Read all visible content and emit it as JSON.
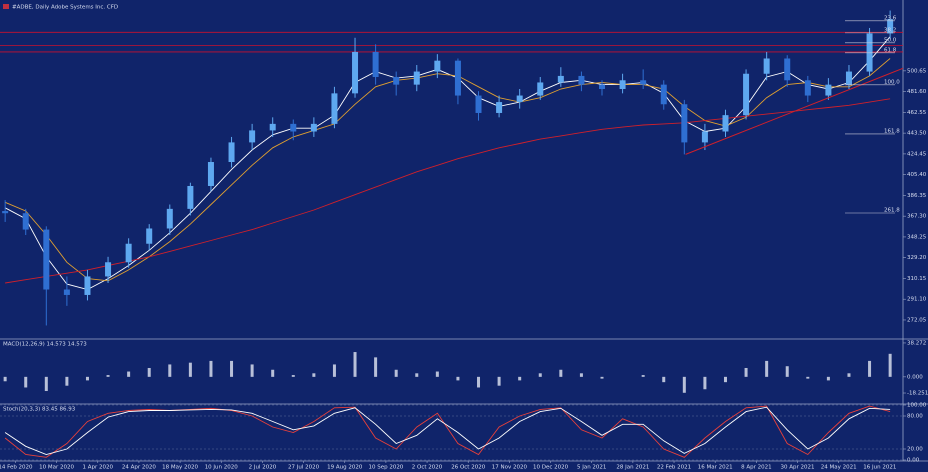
{
  "chart_data": [
    {
      "type": "candlestick",
      "title": "#ADBE, Daily  Adobe Systems Inc. CFD",
      "x": [
        0,
        8,
        16,
        24,
        32,
        40,
        48,
        56,
        64,
        72,
        80,
        88,
        96,
        104,
        112,
        120,
        128,
        136,
        144,
        152,
        160,
        168,
        176,
        184,
        192,
        200,
        208,
        216,
        224,
        232,
        240,
        248,
        256,
        264,
        272,
        280,
        288,
        296,
        304,
        312,
        320,
        328,
        336,
        344
      ],
      "open": [
        372,
        370,
        355,
        300,
        295,
        312,
        325,
        342,
        356,
        374,
        395,
        417,
        435,
        446,
        452,
        445,
        452,
        480,
        518,
        495,
        488,
        500,
        510,
        478,
        462,
        472,
        478,
        490,
        496,
        488,
        484,
        492,
        488,
        470,
        435,
        445,
        460,
        498,
        512,
        492,
        478,
        488,
        500,
        535
      ],
      "high": [
        382,
        374,
        358,
        312,
        318,
        330,
        347,
        360,
        378,
        398,
        421,
        440,
        452,
        458,
        456,
        458,
        486,
        531,
        525,
        500,
        506,
        516,
        512,
        482,
        478,
        484,
        495,
        504,
        500,
        492,
        498,
        502,
        492,
        474,
        452,
        465,
        502,
        518,
        515,
        496,
        494,
        506,
        540,
        556
      ],
      "low": [
        362,
        350,
        267,
        285,
        290,
        306,
        320,
        336,
        350,
        368,
        390,
        412,
        428,
        440,
        437,
        440,
        448,
        476,
        488,
        478,
        482,
        494,
        470,
        455,
        458,
        466,
        474,
        486,
        482,
        478,
        480,
        484,
        465,
        424,
        428,
        440,
        456,
        492,
        486,
        472,
        474,
        484,
        496,
        530
      ],
      "close": [
        370,
        355,
        300,
        295,
        312,
        325,
        342,
        356,
        374,
        395,
        417,
        435,
        446,
        452,
        445,
        452,
        480,
        518,
        495,
        488,
        500,
        510,
        478,
        462,
        472,
        478,
        490,
        496,
        488,
        484,
        492,
        488,
        470,
        435,
        445,
        460,
        498,
        512,
        492,
        478,
        488,
        500,
        535,
        548
      ],
      "up_color": "#5ea8f0",
      "down_color": "#2f6fd2",
      "xlim": [
        -2,
        349
      ],
      "xticks": [
        {
          "value": 4,
          "label": "14 Feb 2020"
        },
        {
          "value": 20,
          "label": "10 Mar 2020"
        },
        {
          "value": 36,
          "label": "1 Apr 2020"
        },
        {
          "value": 52,
          "label": "24 Apr 2020"
        },
        {
          "value": 68,
          "label": "18 May 2020"
        },
        {
          "value": 84,
          "label": "10 Jun 2020"
        },
        {
          "value": 100,
          "label": "2 Jul 2020"
        },
        {
          "value": 116,
          "label": "27 Jul 2020"
        },
        {
          "value": 132,
          "label": "19 Aug 2020"
        },
        {
          "value": 148,
          "label": "10 Sep 2020"
        },
        {
          "value": 164,
          "label": "2 Oct 2020"
        },
        {
          "value": 180,
          "label": "26 Oct 2020"
        },
        {
          "value": 196,
          "label": "17 Nov 2020"
        },
        {
          "value": 212,
          "label": "10 Dec 2020"
        },
        {
          "value": 228,
          "label": "5 Jan 2021"
        },
        {
          "value": 244,
          "label": "28 Jan 2021"
        },
        {
          "value": 260,
          "label": "22 Feb 2021"
        },
        {
          "value": 276,
          "label": "16 Mar 2021"
        },
        {
          "value": 292,
          "label": "8 Apr 2021"
        },
        {
          "value": 308,
          "label": "30 Apr 2021"
        },
        {
          "value": 324,
          "label": "24 May 2021"
        },
        {
          "value": 340,
          "label": "16 Jun 2021"
        }
      ],
      "ylim": [
        255.5,
        562
      ],
      "yticks": [
        272.05,
        {
          "value": 291.1,
          "label": "291.10"
        },
        310.15,
        {
          "value": 329.2,
          "label": "329.20"
        },
        348.25,
        {
          "value": 367.3,
          "label": "367.30"
        },
        386.35,
        {
          "value": 405.4,
          "label": "405.40"
        },
        424.45,
        {
          "value": 443.5,
          "label": "443.50"
        },
        462.55,
        {
          "value": 481.6,
          "label": "481.60"
        },
        500.65
      ],
      "lines": [
        {
          "color": "#ffffff",
          "values": [
            375,
            365,
            330,
            305,
            300,
            310,
            322,
            336,
            352,
            370,
            390,
            410,
            428,
            442,
            448,
            448,
            460,
            490,
            500,
            494,
            496,
            502,
            494,
            476,
            468,
            472,
            482,
            490,
            492,
            488,
            488,
            490,
            480,
            455,
            445,
            448,
            468,
            495,
            500,
            488,
            484,
            490,
            510,
            532
          ]
        },
        {
          "color": "#e0a030",
          "values": [
            380,
            372,
            350,
            325,
            310,
            308,
            318,
            330,
            344,
            360,
            378,
            396,
            414,
            430,
            440,
            446,
            452,
            470,
            486,
            492,
            494,
            498,
            496,
            486,
            476,
            472,
            476,
            484,
            488,
            490,
            488,
            488,
            484,
            468,
            455,
            450,
            458,
            476,
            488,
            490,
            486,
            486,
            496,
            512
          ]
        },
        {
          "color": "#d0202a",
          "values": [
            306,
            309,
            312,
            315,
            318,
            322,
            326,
            330,
            335,
            340,
            345,
            350,
            355,
            361,
            367,
            373,
            380,
            387,
            394,
            401,
            408,
            414,
            420,
            425,
            430,
            434,
            438,
            441,
            444,
            447,
            449,
            451,
            452,
            453,
            455,
            457,
            459,
            461,
            463,
            465,
            467,
            469,
            472,
            475
          ]
        }
      ],
      "levels": {
        "color": "#c8102e",
        "values": [
          536,
          524,
          518
        ]
      },
      "fib": {
        "color": "#c8c8d8",
        "labels": [
          "23.6",
          "38.2",
          "50.0",
          "61.8",
          "100.0",
          "161.8",
          "261.8"
        ],
        "values": [
          546.6,
          535.5,
          526.4,
          517.2,
          487.8,
          442.8,
          370.2
        ]
      },
      "trendline": {
        "color": "#d0202a",
        "x": [
          264.5,
          349
        ],
        "values": [
          424,
          503
        ]
      }
    },
    {
      "type": "bar",
      "title": "MACD(12,26,9) 14.573 14.573",
      "x": [
        0,
        8,
        16,
        24,
        32,
        40,
        48,
        56,
        64,
        72,
        80,
        88,
        96,
        104,
        112,
        120,
        128,
        136,
        144,
        152,
        160,
        168,
        176,
        184,
        192,
        200,
        208,
        216,
        224,
        232,
        240,
        248,
        256,
        264,
        272,
        280,
        288,
        296,
        304,
        312,
        320,
        328,
        336,
        344
      ],
      "values": [
        -5,
        -12,
        -16,
        -10,
        -4,
        2,
        6,
        10,
        14,
        16,
        18,
        18,
        14,
        8,
        2,
        4,
        14,
        28,
        22,
        8,
        4,
        6,
        -4,
        -12,
        -10,
        -4,
        4,
        8,
        4,
        -2,
        0,
        2,
        -6,
        -18,
        -14,
        -6,
        10,
        18,
        12,
        -2,
        -4,
        4,
        18,
        26
      ],
      "color": "#b8c0d8",
      "xlim": [
        -2,
        349
      ],
      "ylim": [
        -28.4,
        41.6
      ],
      "yticks": [
        38.272,
        {
          "value": 0,
          "label": "0.000"
        },
        -18.251
      ]
    },
    {
      "type": "line",
      "title": "Stoch(20,3,3) 83.45 86.93",
      "x": [
        0,
        8,
        16,
        24,
        32,
        40,
        48,
        56,
        64,
        72,
        80,
        88,
        96,
        104,
        112,
        120,
        128,
        136,
        144,
        152,
        160,
        168,
        176,
        184,
        192,
        200,
        208,
        216,
        224,
        232,
        240,
        248,
        256,
        264,
        272,
        280,
        288,
        296,
        304,
        312,
        320,
        328,
        336,
        344
      ],
      "xlim": [
        -2,
        349
      ],
      "ylim": [
        0,
        100
      ],
      "yticks": [
        {
          "value": 100,
          "label": "100.00"
        },
        {
          "value": 80,
          "label": "80.00"
        },
        {
          "value": 20,
          "label": "20.00"
        },
        {
          "value": 0,
          "label": "0.00"
        }
      ],
      "series": [
        {
          "color": "#e8403a",
          "values": [
            40,
            10,
            5,
            30,
            70,
            85,
            90,
            92,
            90,
            92,
            94,
            90,
            80,
            60,
            50,
            70,
            95,
            96,
            40,
            20,
            60,
            85,
            30,
            10,
            60,
            80,
            92,
            95,
            55,
            40,
            75,
            60,
            20,
            5,
            40,
            70,
            95,
            98,
            30,
            10,
            50,
            85,
            98,
            88
          ]
        },
        {
          "color": "#ffffff",
          "values": [
            50,
            25,
            10,
            20,
            50,
            78,
            88,
            90,
            90,
            91,
            92,
            91,
            85,
            70,
            55,
            62,
            85,
            95,
            65,
            30,
            45,
            75,
            50,
            20,
            40,
            70,
            88,
            94,
            70,
            45,
            65,
            65,
            35,
            12,
            30,
            60,
            88,
            96,
            55,
            20,
            40,
            75,
            94,
            92
          ]
        }
      ]
    }
  ]
}
